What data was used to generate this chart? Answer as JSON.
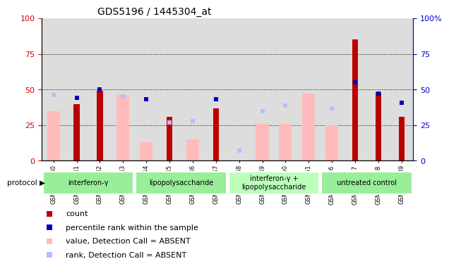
{
  "title": "GDS5196 / 1445304_at",
  "samples": [
    "GSM1304840",
    "GSM1304841",
    "GSM1304842",
    "GSM1304843",
    "GSM1304844",
    "GSM1304845",
    "GSM1304846",
    "GSM1304847",
    "GSM1304848",
    "GSM1304849",
    "GSM1304850",
    "GSM1304851",
    "GSM1304836",
    "GSM1304837",
    "GSM1304838",
    "GSM1304839"
  ],
  "count_values": [
    0,
    40,
    49,
    0,
    0,
    31,
    0,
    37,
    0,
    0,
    0,
    0,
    0,
    85,
    48,
    31
  ],
  "percentile_values": [
    null,
    44,
    50,
    null,
    43,
    null,
    null,
    43,
    null,
    null,
    null,
    null,
    null,
    55,
    47,
    41
  ],
  "absent_value_values": [
    35,
    null,
    null,
    46,
    13,
    null,
    15,
    null,
    null,
    26,
    26,
    47,
    25,
    null,
    null,
    null
  ],
  "absent_rank_values": [
    46,
    null,
    null,
    45,
    null,
    27,
    28,
    null,
    7,
    35,
    39,
    null,
    37,
    null,
    null,
    null
  ],
  "groups": [
    {
      "label": "interferon-γ",
      "start": 0,
      "end": 3,
      "color": "#99ee99"
    },
    {
      "label": "lipopolysaccharide",
      "start": 4,
      "end": 7,
      "color": "#99ee99"
    },
    {
      "label": "interferon-γ +\nlipopolysaccharide",
      "start": 8,
      "end": 11,
      "color": "#bbffbb"
    },
    {
      "label": "untreated control",
      "start": 12,
      "end": 15,
      "color": "#99ee99"
    }
  ],
  "left_axis_color": "#cc0000",
  "right_axis_color": "#0000cc",
  "bar_color_count": "#bb0000",
  "bar_color_percentile": "#0000bb",
  "bar_color_absent_value": "#ffbbbb",
  "bar_color_absent_rank": "#bbbbff",
  "ylim_left": [
    0,
    100
  ],
  "ylim_right": [
    0,
    100
  ],
  "grid_lines": [
    25,
    50,
    75
  ],
  "plot_bg_color": "#dddddd",
  "yticks": [
    0,
    25,
    50,
    75,
    100
  ],
  "ytick_labels_left": [
    "0",
    "25",
    "50",
    "75",
    "100"
  ],
  "ytick_labels_right": [
    "0",
    "25",
    "50",
    "75",
    "100%"
  ],
  "right_top_label": "100%"
}
